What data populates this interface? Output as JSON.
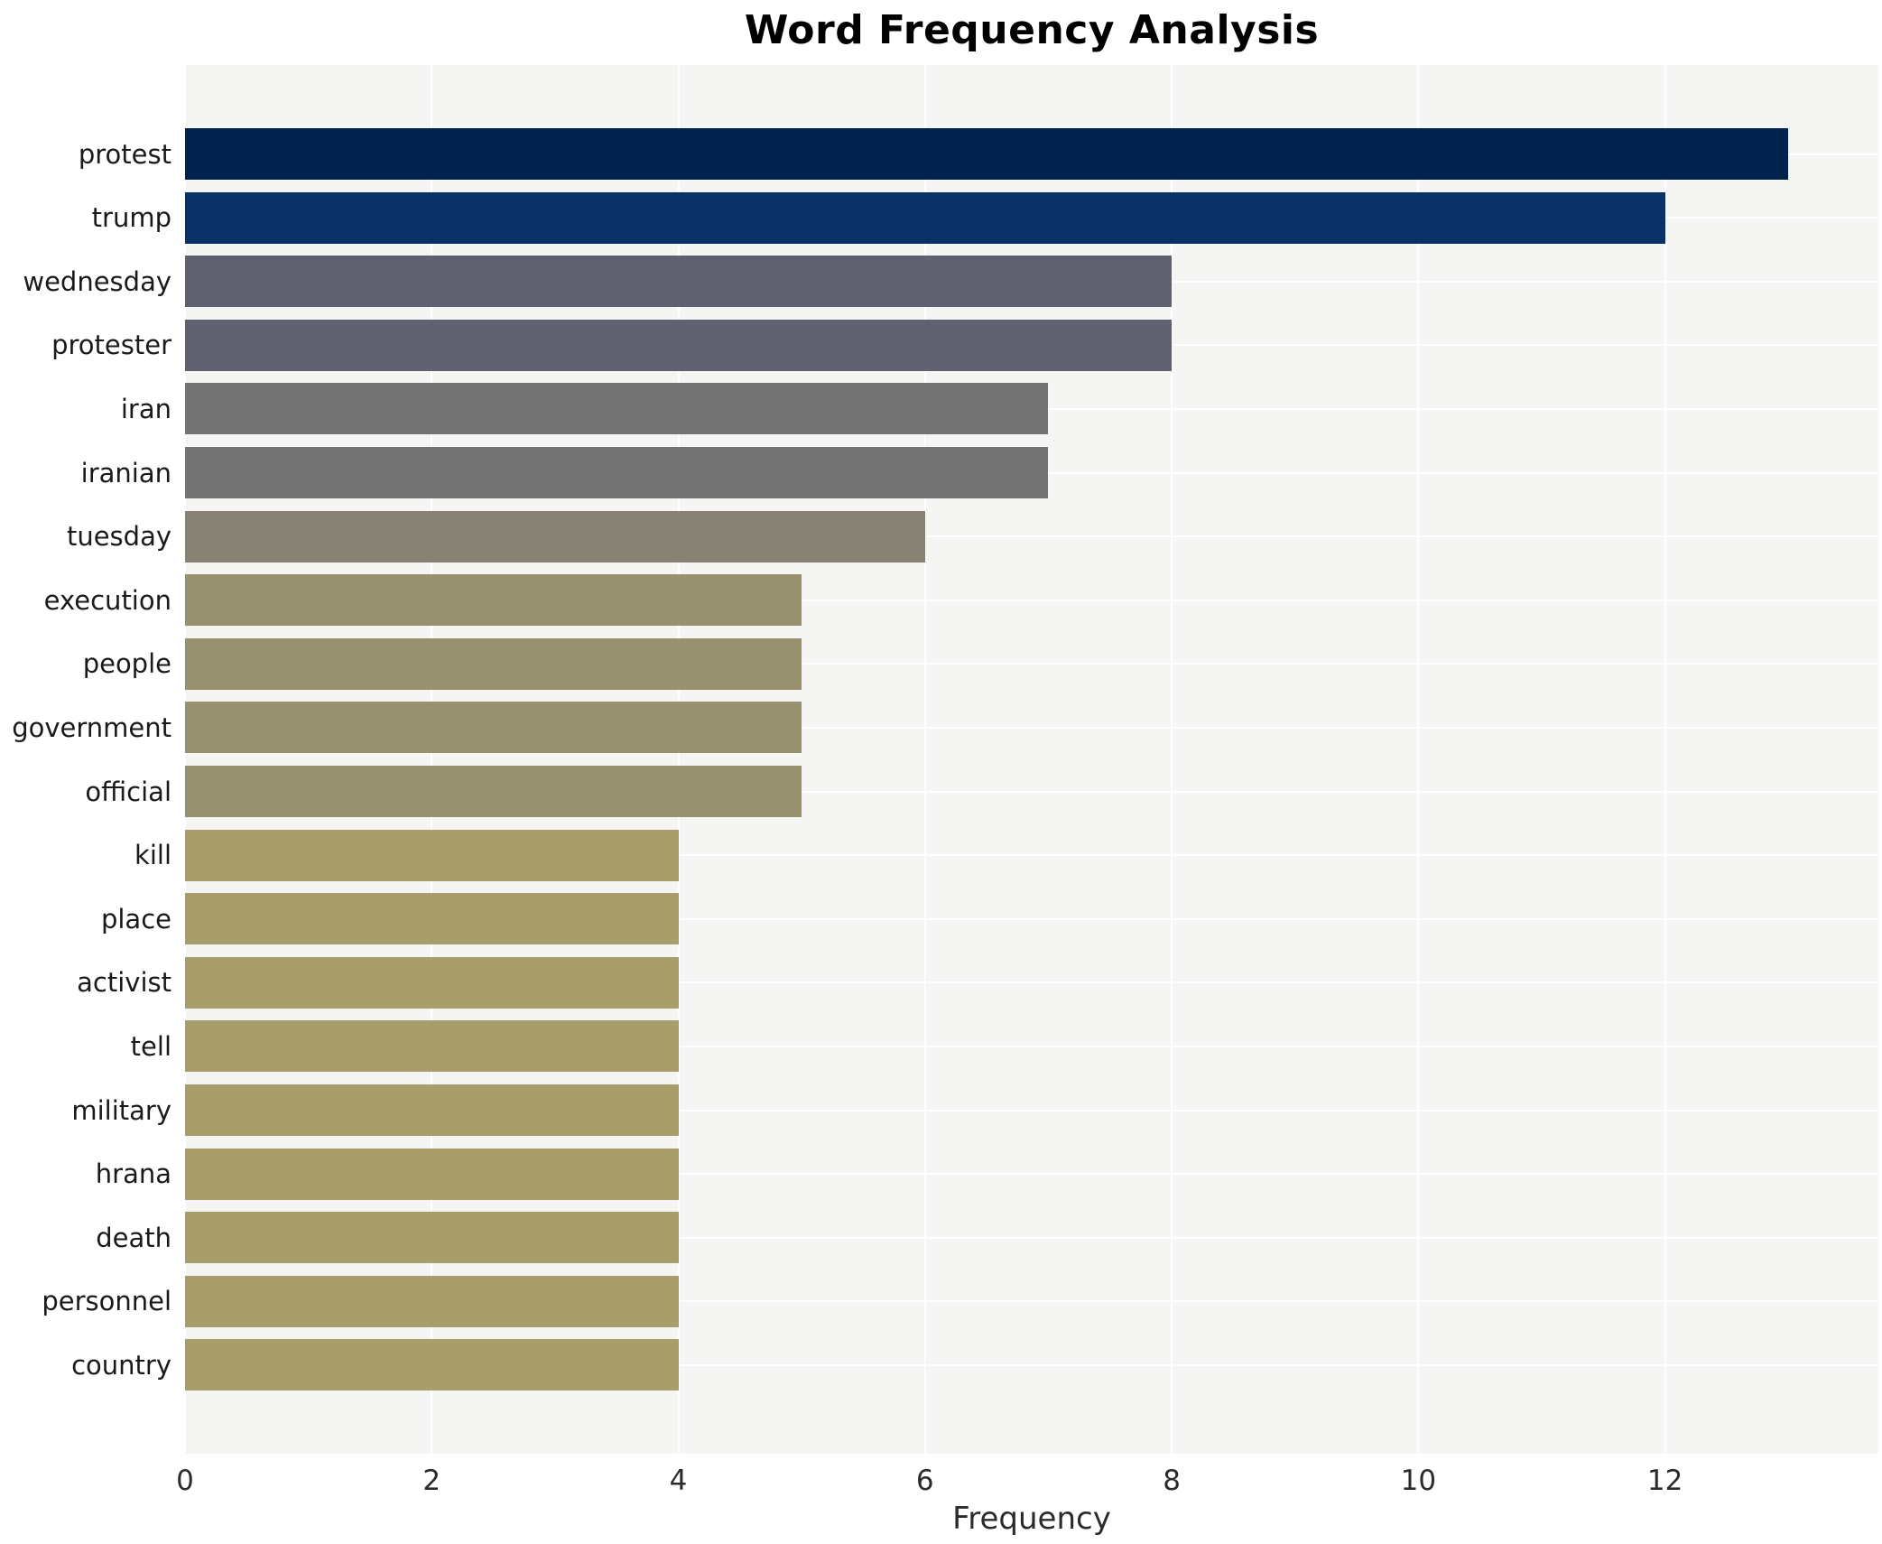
{
  "title": "Word Frequency Analysis",
  "chart_data": {
    "type": "bar",
    "orientation": "horizontal",
    "title": "Word Frequency Analysis",
    "xlabel": "Frequency",
    "ylabel": "",
    "categories": [
      "protest",
      "trump",
      "wednesday",
      "protester",
      "iran",
      "iranian",
      "tuesday",
      "execution",
      "people",
      "government",
      "official",
      "kill",
      "place",
      "activist",
      "tell",
      "military",
      "hrana",
      "death",
      "personnel",
      "country"
    ],
    "values": [
      13,
      12,
      8,
      8,
      7,
      7,
      6,
      5,
      5,
      5,
      5,
      4,
      4,
      4,
      4,
      4,
      4,
      4,
      4,
      4
    ],
    "bar_colors": [
      "#00224d",
      "#0a3166",
      "#5f626e",
      "#5f626e",
      "#737373",
      "#737373",
      "#878273",
      "#98916f",
      "#98916f",
      "#98916f",
      "#98916f",
      "#a79e6b",
      "#a79e6b",
      "#a79e6b",
      "#a79e6b",
      "#a79e6b",
      "#a79e6b",
      "#a79e6b",
      "#a79e6b",
      "#a79e6b"
    ],
    "xlim": [
      0,
      13.73
    ],
    "xticks": [
      0,
      2,
      4,
      6,
      8,
      10,
      12
    ],
    "grid": true,
    "legend": "none",
    "plot_background": "#f5f5f3",
    "grid_color": "#ffffff",
    "figure_background": "#ffffff"
  }
}
